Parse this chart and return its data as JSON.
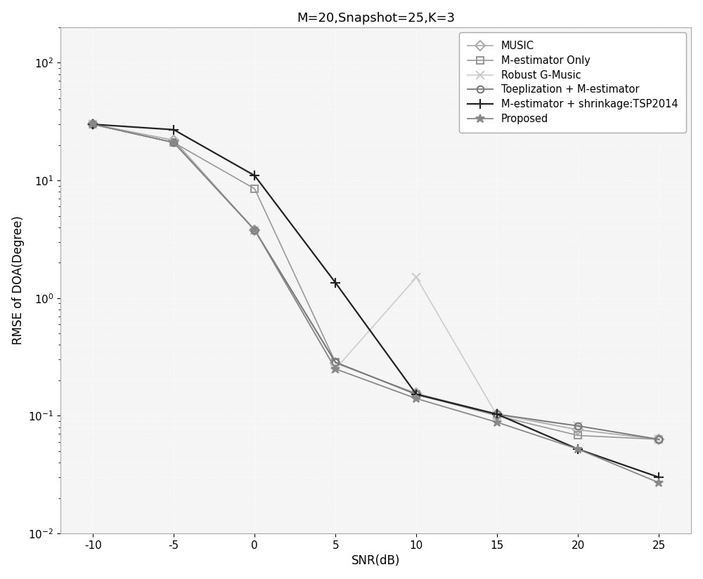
{
  "title": "M=20,Snapshot=25,K=3",
  "xlabel": "SNR(dB)",
  "ylabel": "RMSE of DOA(Degree)",
  "snr": [
    -10,
    -5,
    0,
    5,
    10,
    15,
    20,
    25
  ],
  "series": [
    {
      "name": "MUSIC",
      "values": [
        30,
        22,
        3.8,
        0.28,
        0.155,
        0.103,
        0.076,
        0.063
      ],
      "color": "#aaaaaa",
      "marker": "D",
      "markersize": 7,
      "linewidth": 1.2,
      "linestyle": "-",
      "hollow": true
    },
    {
      "name": "M-estimator Only",
      "values": [
        30,
        21,
        8.5,
        0.285,
        0.152,
        0.1,
        0.068,
        0.063
      ],
      "color": "#999999",
      "marker": "s",
      "markersize": 7,
      "linewidth": 1.2,
      "linestyle": "-",
      "hollow": true
    },
    {
      "name": "Robust G-Music",
      "values": [
        30,
        21,
        3.8,
        0.25,
        1.5,
        0.1,
        0.082,
        0.063
      ],
      "color": "#cccccc",
      "marker": "x",
      "markersize": 8,
      "linewidth": 1.2,
      "linestyle": "-",
      "hollow": false
    },
    {
      "name": "Toeplization + M-estimator",
      "values": [
        30,
        21,
        3.8,
        0.285,
        0.152,
        0.103,
        0.082,
        0.063
      ],
      "color": "#777777",
      "marker": "o",
      "markersize": 7,
      "linewidth": 1.3,
      "linestyle": "-",
      "hollow": true
    },
    {
      "name": "M-estimator + shrinkage:TSP2014",
      "values": [
        30,
        27,
        11.0,
        1.35,
        0.152,
        0.103,
        0.052,
        0.03
      ],
      "color": "#222222",
      "marker": "+",
      "markersize": 10,
      "linewidth": 1.6,
      "linestyle": "-",
      "hollow": false
    },
    {
      "name": "Proposed",
      "values": [
        30,
        21,
        3.8,
        0.25,
        0.14,
        0.088,
        0.052,
        0.027
      ],
      "color": "#888888",
      "marker": "*",
      "markersize": 9,
      "linewidth": 1.3,
      "linestyle": "-",
      "hollow": false
    }
  ],
  "ylim": [
    0.01,
    200
  ],
  "xlim": [
    -12,
    27
  ],
  "background_color": "#ffffff",
  "axes_facecolor": "#f5f5f5",
  "grid_color": "#ffffff",
  "grid_linestyle": ":",
  "title_fontsize": 13,
  "label_fontsize": 12,
  "tick_fontsize": 11,
  "legend_fontsize": 10.5
}
